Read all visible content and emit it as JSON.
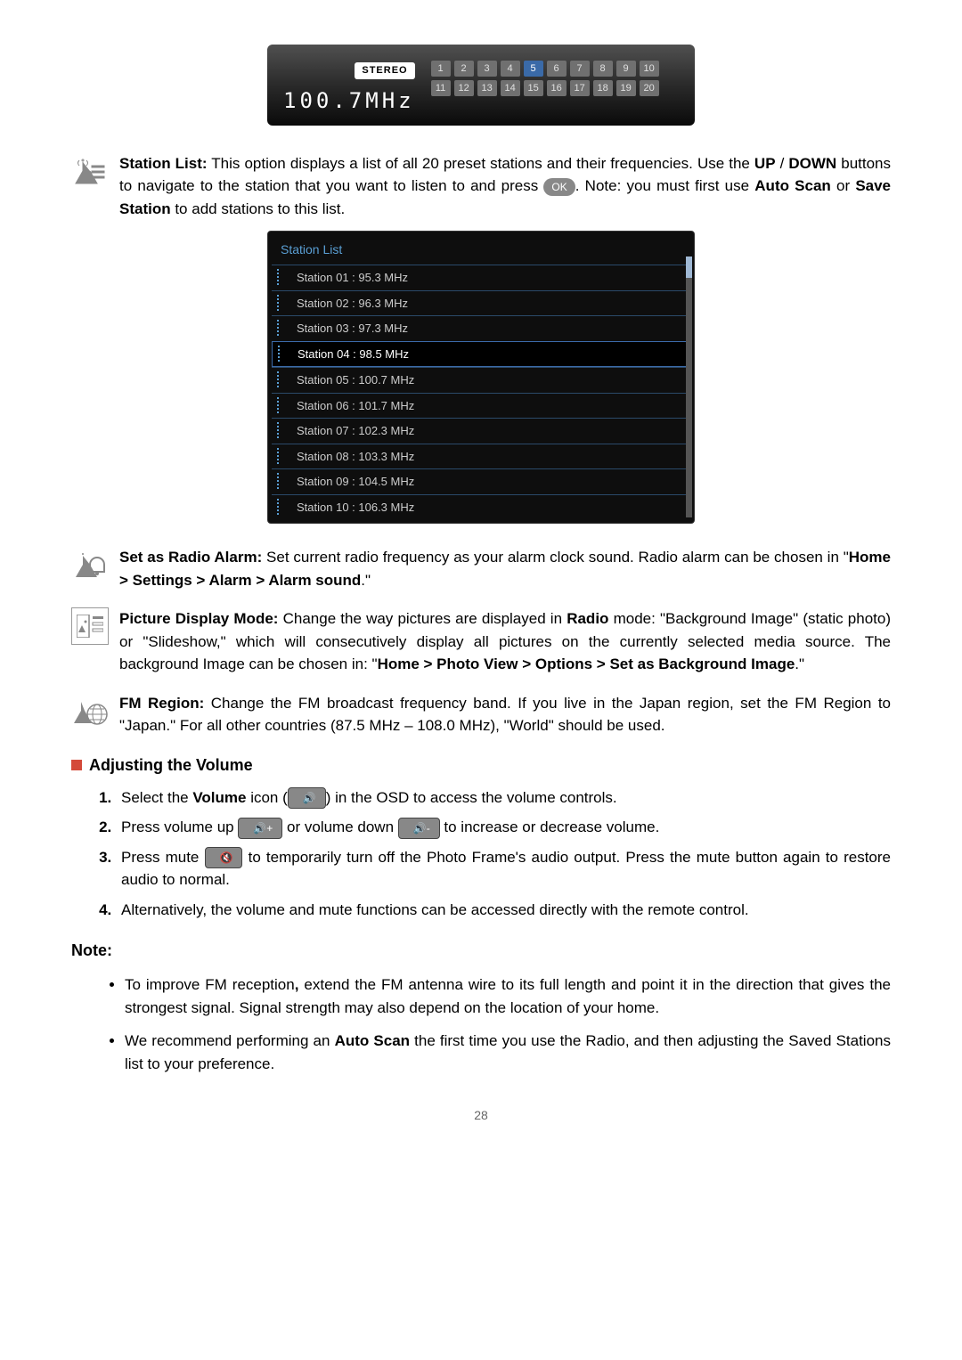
{
  "radio": {
    "stereo": "STEREO",
    "frequency": "100.7MHz",
    "preset_count": 20,
    "selected_preset": 5
  },
  "station_list_panel": {
    "title": "Station List",
    "selected_index": 3,
    "stations": [
      {
        "label": "Station 01 :",
        "freq": "95.3 MHz"
      },
      {
        "label": "Station 02 :",
        "freq": "96.3 MHz"
      },
      {
        "label": "Station 03 :",
        "freq": "97.3 MHz"
      },
      {
        "label": "Station 04 :",
        "freq": "98.5 MHz"
      },
      {
        "label": "Station 05 :",
        "freq": "100.7 MHz"
      },
      {
        "label": "Station 06 :",
        "freq": "101.7 MHz"
      },
      {
        "label": "Station 07 :",
        "freq": "102.3 MHz"
      },
      {
        "label": "Station 08 :",
        "freq": "103.3 MHz"
      },
      {
        "label": "Station 09 :",
        "freq": "104.5 MHz"
      },
      {
        "label": "Station 10 :",
        "freq": "106.3 MHz"
      }
    ]
  },
  "features": {
    "station_list": {
      "bold1": "Station List:",
      "text1": " This option displays a list of all 20 preset stations and their frequencies. Use the ",
      "bold2": "UP",
      "text2": " / ",
      "bold3": "DOWN",
      "text3": " buttons to navigate to the station that you want to listen to and press ",
      "ok": "OK",
      "text4": ". Note: you must first use ",
      "bold4": "Auto Scan",
      "text5": " or ",
      "bold5": "Save Station",
      "text6": " to add stations to this list."
    },
    "radio_alarm": {
      "bold1": "Set as Radio Alarm:",
      "text1": " Set current radio frequency as your alarm clock sound. Radio alarm can be chosen in \"",
      "bold_path": "Home > Settings > Alarm > Alarm sound",
      "text2": ".\""
    },
    "picture_mode": {
      "bold1": "Picture Display Mode:",
      "text1": " Change the way pictures are displayed in ",
      "bold2": "Radio",
      "text2": " mode: \"Background Image\" (static photo) or \"Slideshow,\" which will consecutively display all pictures on the currently selected media source.  The background Image can be chosen in: \"",
      "bold_path": "Home > Photo View > Options > Set as Background Image",
      "text3": ".\""
    },
    "fm_region": {
      "bold1": "FM Region:",
      "text1": " Change the FM broadcast frequency band. If you live in the Japan region, set the FM Region to \"Japan.\" For all other countries (87.5 MHz – 108.0 MHz), \"World\" should be used."
    }
  },
  "volume": {
    "heading": "Adjusting the Volume",
    "steps": {
      "s1a": "Select the ",
      "s1b": "Volume",
      "s1c": " icon (",
      "s1_btn": "🔊",
      "s1d": ") in the OSD to access the volume controls.",
      "s2a": "Press volume up ",
      "s2_btn1": "🔊+",
      "s2b": " or volume down ",
      "s2_btn2": "🔊-",
      "s2c": " to increase or decrease volume.",
      "s3a": "Press mute ",
      "s3_btn": "🔇",
      "s3b": " to temporarily turn off the Photo Frame's audio output. Press the mute button again to restore audio to normal.",
      "s4": "Alternatively, the volume and mute functions can be accessed directly with the remote control."
    }
  },
  "note": {
    "heading": "Note:",
    "n1a": "To improve FM reception",
    "n1b": ", ",
    "n1c": "extend the FM antenna wire to its full length and point it in the direction that gives the strongest signal. Signal strength may also depend on the location of your home.",
    "n2a": "We recommend performing an ",
    "n2b": "Auto Scan",
    "n2c": " the first time you use the Radio, and then adjusting the Saved Stations list to your preference."
  },
  "page": "28"
}
